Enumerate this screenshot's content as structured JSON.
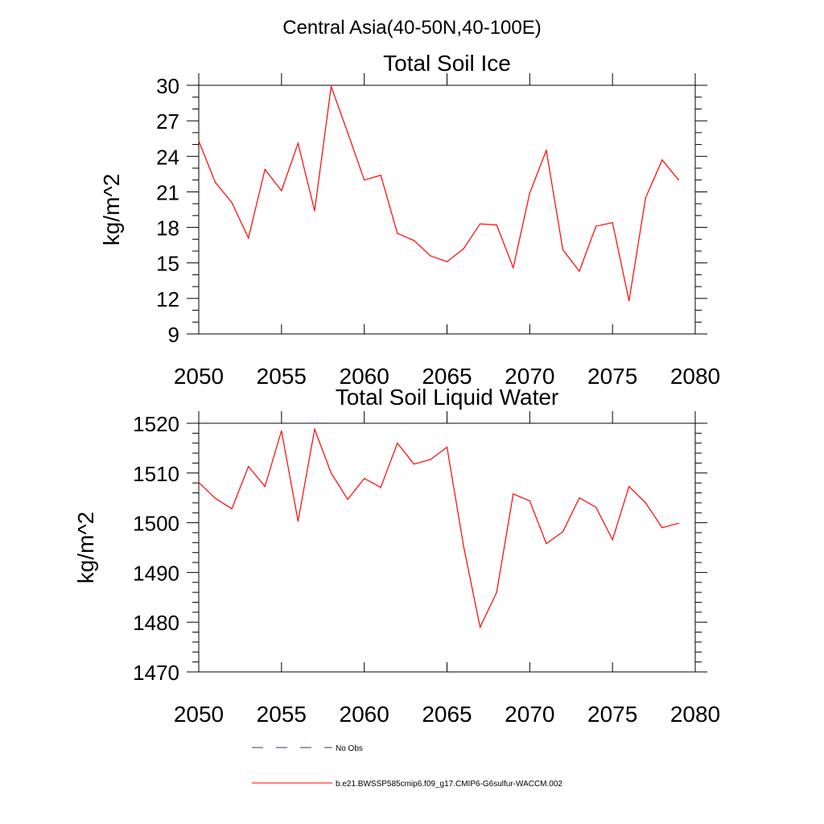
{
  "figure_title": "Central Asia(40-50N,40-100E)",
  "colors": {
    "series": "#ff0000",
    "axis": "#000000",
    "no_obs": "#3a3a6a"
  },
  "legend": [
    {
      "label": "No Obs",
      "style": "dashed"
    },
    {
      "label": "b.e21.BWSSP585cmip6.f09_g17.CMIP6-G6sulfur-WACCM.002",
      "style": "solid"
    }
  ],
  "chart_data": [
    {
      "type": "line",
      "title": "Total Soil Ice",
      "xlabel": "",
      "ylabel": "kg/m^2",
      "xlim": [
        2050,
        2080
      ],
      "ylim": [
        9,
        30
      ],
      "x_ticks": [
        2050,
        2055,
        2060,
        2065,
        2070,
        2075,
        2080
      ],
      "y_ticks": [
        9,
        12,
        15,
        18,
        21,
        24,
        27,
        30
      ],
      "y_minor_step": 1,
      "grid": false,
      "series": [
        {
          "x": [
            2050,
            2051,
            2052,
            2053,
            2054,
            2055,
            2056,
            2057,
            2058,
            2059,
            2060,
            2061,
            2062,
            2063,
            2064,
            2065,
            2066,
            2067,
            2068,
            2069,
            2070,
            2071,
            2072,
            2073,
            2074,
            2075,
            2076,
            2077,
            2078,
            2079
          ],
          "values": [
            25.3,
            21.8,
            20.1,
            17.1,
            22.9,
            21.1,
            25.1,
            19.4,
            29.9,
            26.0,
            22.0,
            22.4,
            17.5,
            16.9,
            15.6,
            15.1,
            16.2,
            18.3,
            18.2,
            14.6,
            20.9,
            24.5,
            16.1,
            14.3,
            18.1,
            18.4,
            11.8,
            20.5,
            23.7,
            22.0
          ]
        }
      ]
    },
    {
      "type": "line",
      "title": "Total Soil Liquid Water",
      "xlabel": "",
      "ylabel": "kg/m^2",
      "xlim": [
        2050,
        2080
      ],
      "ylim": [
        1470,
        1520
      ],
      "x_ticks": [
        2050,
        2055,
        2060,
        2065,
        2070,
        2075,
        2080
      ],
      "y_ticks": [
        1470,
        1480,
        1490,
        1500,
        1510,
        1520
      ],
      "y_minor_step": 2,
      "grid": false,
      "series": [
        {
          "x": [
            2050,
            2051,
            2052,
            2053,
            2054,
            2055,
            2056,
            2057,
            2058,
            2059,
            2060,
            2061,
            2062,
            2063,
            2064,
            2065,
            2066,
            2067,
            2068,
            2069,
            2070,
            2071,
            2072,
            2073,
            2074,
            2075,
            2076,
            2077,
            2078,
            2079
          ],
          "values": [
            1508.1,
            1504.9,
            1502.8,
            1511.3,
            1507.3,
            1518.5,
            1500.3,
            1518.8,
            1510.0,
            1504.7,
            1508.9,
            1507.1,
            1516.0,
            1511.8,
            1512.7,
            1515.2,
            1495.3,
            1479.0,
            1486.0,
            1505.8,
            1504.4,
            1495.8,
            1498.2,
            1505.0,
            1503.1,
            1496.6,
            1507.3,
            1504.0,
            1499.0,
            1499.9
          ]
        }
      ]
    }
  ]
}
